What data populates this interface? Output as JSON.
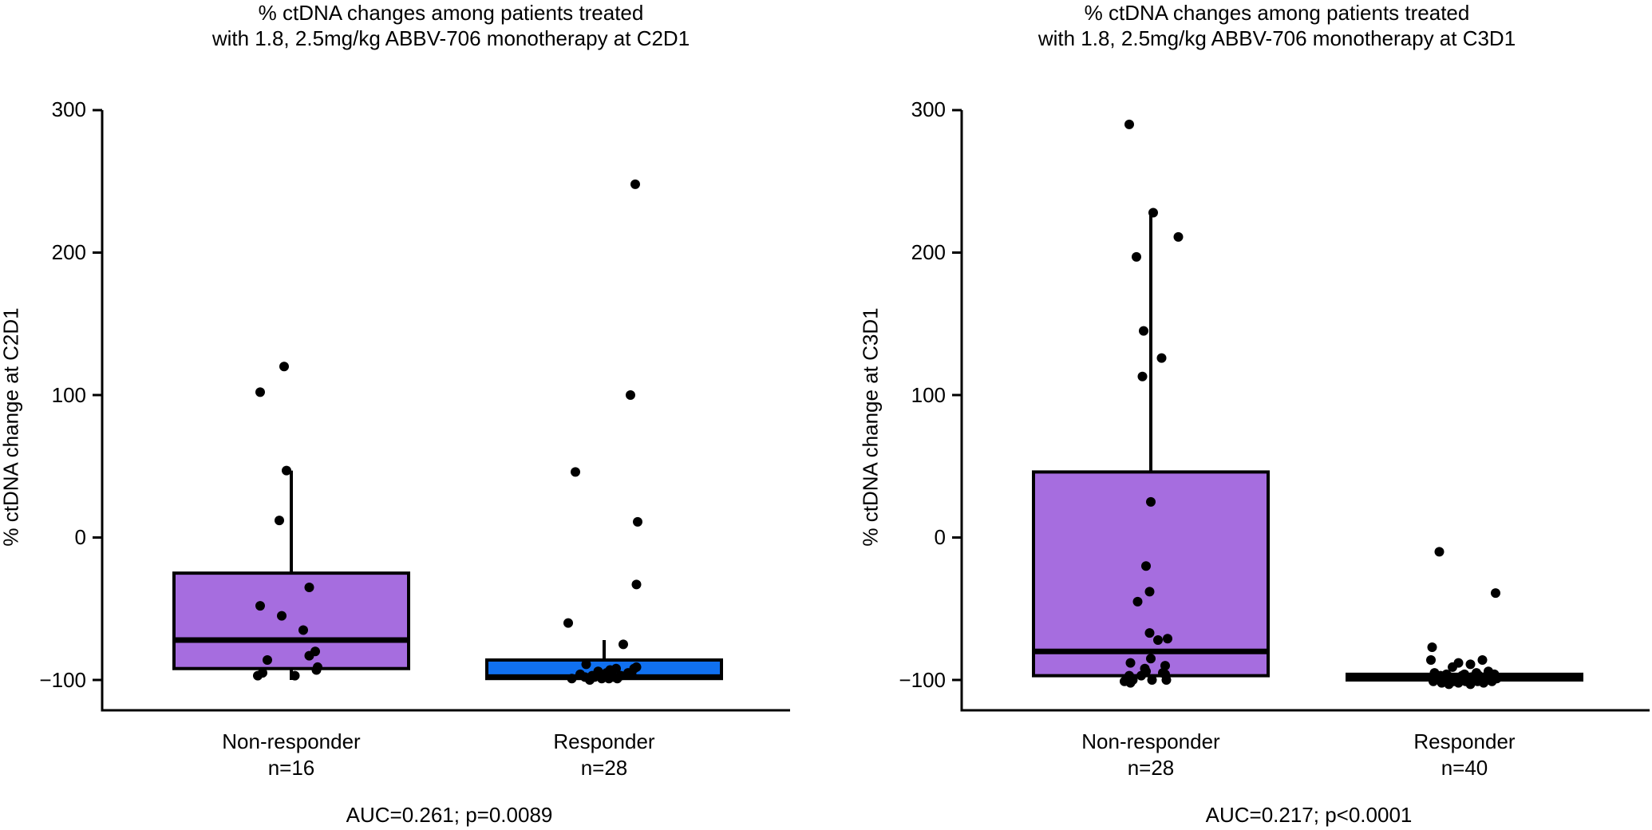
{
  "chart_data": [
    {
      "type": "box",
      "title_lines": [
        "% ctDNA changes among patients treated",
        "with 1.8, 2.5mg/kg ABBV-706 monotherapy at C2D1"
      ],
      "xlabel": "",
      "ylabel": "% ctDNA change at C2D1",
      "ylim": [
        -122,
        300
      ],
      "yticks": [
        300,
        200,
        100,
        0,
        -100
      ],
      "ytick_labels": [
        "300",
        "200",
        "100",
        "0",
        "−100"
      ],
      "grid": false,
      "categories": [
        {
          "label": "Non-responder",
          "n_label": "n=16",
          "color": "#a66ddf",
          "box": {
            "q1": -92,
            "median": -72,
            "q3": -25,
            "whisker_low": -100,
            "whisker_high": 47
          },
          "points": [
            {
              "x": -0.06,
              "y": 120
            },
            {
              "x": -0.26,
              "y": 102
            },
            {
              "x": -0.04,
              "y": 47
            },
            {
              "x": -0.1,
              "y": 12
            },
            {
              "x": 0.15,
              "y": -35
            },
            {
              "x": -0.26,
              "y": -48
            },
            {
              "x": -0.08,
              "y": -55
            },
            {
              "x": 0.1,
              "y": -65
            },
            {
              "x": 0.2,
              "y": -80
            },
            {
              "x": 0.15,
              "y": -83
            },
            {
              "x": -0.2,
              "y": -86
            },
            {
              "x": 0.22,
              "y": -91
            },
            {
              "x": 0.21,
              "y": -93
            },
            {
              "x": -0.24,
              "y": -95
            },
            {
              "x": -0.28,
              "y": -97
            },
            {
              "x": 0.03,
              "y": -97
            }
          ]
        },
        {
          "label": "Responder",
          "n_label": "n=28",
          "color": "#1070f0",
          "box": {
            "q1": -99,
            "median": -98,
            "q3": -86,
            "whisker_low": -100,
            "whisker_high": -72
          },
          "points": [
            {
              "x": 0.26,
              "y": 248
            },
            {
              "x": 0.22,
              "y": 100
            },
            {
              "x": -0.24,
              "y": 46
            },
            {
              "x": 0.28,
              "y": 11
            },
            {
              "x": 0.27,
              "y": -33
            },
            {
              "x": -0.3,
              "y": -60
            },
            {
              "x": 0.16,
              "y": -75
            },
            {
              "x": -0.15,
              "y": -89
            },
            {
              "x": 0.27,
              "y": -91
            },
            {
              "x": 0.25,
              "y": -92
            },
            {
              "x": 0.1,
              "y": -92
            },
            {
              "x": 0.05,
              "y": -93
            },
            {
              "x": -0.05,
              "y": -94
            },
            {
              "x": 0.02,
              "y": -95
            },
            {
              "x": 0.2,
              "y": -95
            },
            {
              "x": -0.2,
              "y": -96
            },
            {
              "x": 0.23,
              "y": -96
            },
            {
              "x": -0.1,
              "y": -97
            },
            {
              "x": 0.14,
              "y": -97
            },
            {
              "x": -0.08,
              "y": -98
            },
            {
              "x": 0.0,
              "y": -98
            },
            {
              "x": 0.08,
              "y": -98
            },
            {
              "x": -0.16,
              "y": -98
            },
            {
              "x": -0.02,
              "y": -99
            },
            {
              "x": 0.04,
              "y": -99
            },
            {
              "x": 0.11,
              "y": -99
            },
            {
              "x": -0.27,
              "y": -99
            },
            {
              "x": -0.12,
              "y": -100
            }
          ]
        }
      ],
      "footer": "AUC=0.261; p=0.0089"
    },
    {
      "type": "box",
      "title_lines": [
        "% ctDNA changes among patients treated",
        "with 1.8, 2.5mg/kg ABBV-706 monotherapy at C3D1"
      ],
      "xlabel": "",
      "ylabel": "% ctDNA change at C3D1",
      "ylim": [
        -122,
        300
      ],
      "yticks": [
        300,
        200,
        100,
        0,
        -100
      ],
      "ytick_labels": [
        "300",
        "200",
        "100",
        "0",
        "−100"
      ],
      "grid": false,
      "categories": [
        {
          "label": "Non-responder",
          "n_label": "n=28",
          "color": "#a66ddf",
          "box": {
            "q1": -97,
            "median": -80,
            "q3": 46,
            "whisker_low": -100,
            "whisker_high": 228
          },
          "points": [
            {
              "x": -0.18,
              "y": 290
            },
            {
              "x": 0.02,
              "y": 228
            },
            {
              "x": 0.23,
              "y": 211
            },
            {
              "x": -0.12,
              "y": 197
            },
            {
              "x": -0.06,
              "y": 145
            },
            {
              "x": 0.09,
              "y": 126
            },
            {
              "x": -0.07,
              "y": 113
            },
            {
              "x": 0.0,
              "y": 25
            },
            {
              "x": -0.04,
              "y": -20
            },
            {
              "x": -0.01,
              "y": -38
            },
            {
              "x": -0.11,
              "y": -45
            },
            {
              "x": -0.01,
              "y": -67
            },
            {
              "x": 0.14,
              "y": -71
            },
            {
              "x": 0.06,
              "y": -72
            },
            {
              "x": 0.0,
              "y": -85
            },
            {
              "x": -0.17,
              "y": -88
            },
            {
              "x": 0.12,
              "y": -90
            },
            {
              "x": -0.05,
              "y": -92
            },
            {
              "x": -0.04,
              "y": -94
            },
            {
              "x": 0.1,
              "y": -95
            },
            {
              "x": 0.12,
              "y": -96
            },
            {
              "x": -0.18,
              "y": -97
            },
            {
              "x": -0.08,
              "y": -97
            },
            {
              "x": 0.13,
              "y": -100
            },
            {
              "x": -0.15,
              "y": -100
            },
            {
              "x": 0.01,
              "y": -100
            },
            {
              "x": -0.22,
              "y": -101
            },
            {
              "x": -0.17,
              "y": -102
            }
          ]
        },
        {
          "label": "Responder",
          "n_label": "n=40",
          "color": "#1070f0",
          "box": {
            "q1": -100,
            "median": -98,
            "q3": -96,
            "whisker_low": -102,
            "whisker_high": -94
          },
          "points": [
            {
              "x": -0.21,
              "y": -10
            },
            {
              "x": 0.26,
              "y": -39
            },
            {
              "x": -0.27,
              "y": -77
            },
            {
              "x": -0.28,
              "y": -86
            },
            {
              "x": 0.15,
              "y": -86
            },
            {
              "x": -0.05,
              "y": -88
            },
            {
              "x": 0.05,
              "y": -89
            },
            {
              "x": -0.1,
              "y": -91
            },
            {
              "x": 0.2,
              "y": -94
            },
            {
              "x": -0.25,
              "y": -95
            },
            {
              "x": 0.1,
              "y": -95
            },
            {
              "x": -0.15,
              "y": -96
            },
            {
              "x": 0.0,
              "y": -96
            },
            {
              "x": 0.25,
              "y": -96
            },
            {
              "x": -0.2,
              "y": -97
            },
            {
              "x": -0.02,
              "y": -97
            },
            {
              "x": 0.12,
              "y": -97
            },
            {
              "x": 0.22,
              "y": -97
            },
            {
              "x": -0.12,
              "y": -98
            },
            {
              "x": 0.06,
              "y": -98
            },
            {
              "x": 0.17,
              "y": -98
            },
            {
              "x": -0.24,
              "y": -99
            },
            {
              "x": -0.07,
              "y": -99
            },
            {
              "x": 0.03,
              "y": -99
            },
            {
              "x": 0.14,
              "y": -99
            },
            {
              "x": 0.27,
              "y": -99
            },
            {
              "x": -0.17,
              "y": -100
            },
            {
              "x": -0.03,
              "y": -100
            },
            {
              "x": 0.08,
              "y": -100
            },
            {
              "x": 0.19,
              "y": -100
            },
            {
              "x": -0.26,
              "y": -101
            },
            {
              "x": -0.09,
              "y": -101
            },
            {
              "x": 0.01,
              "y": -101
            },
            {
              "x": 0.11,
              "y": -101
            },
            {
              "x": 0.23,
              "y": -101
            },
            {
              "x": -0.19,
              "y": -102
            },
            {
              "x": -0.05,
              "y": -102
            },
            {
              "x": 0.16,
              "y": -102
            },
            {
              "x": -0.13,
              "y": -103
            },
            {
              "x": 0.05,
              "y": -103
            }
          ]
        }
      ],
      "footer": "AUC=0.217; p<0.0001"
    }
  ]
}
